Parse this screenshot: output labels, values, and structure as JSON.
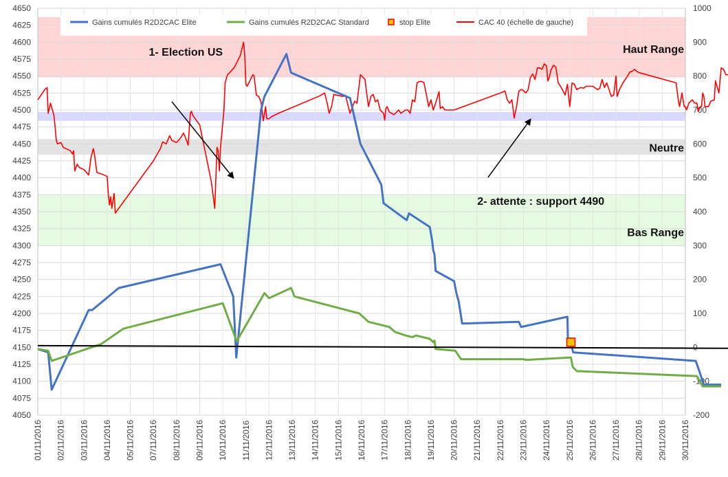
{
  "chart_data": {
    "type": "line",
    "title": "",
    "y_left": {
      "min": 4050,
      "max": 4650,
      "step": 25
    },
    "y_right": {
      "min": -200,
      "max": 1000,
      "step": 100
    },
    "x_labels": [
      "01/11/2016",
      "02/11/2016",
      "03/11/2016",
      "04/11/2016",
      "05/11/2016",
      "07/11/2016",
      "08/11/2016",
      "09/11/2016",
      "10/11/2016",
      "11/11/2016",
      "12/11/2016",
      "13/11/2016",
      "14/11/2016",
      "15/11/2016",
      "16/11/2016",
      "17/11/2016",
      "18/11/2016",
      "19/11/2016",
      "20/11/2016",
      "21/11/2016",
      "22/11/2016",
      "23/11/2016",
      "24/11/2016",
      "25/11/2016",
      "26/11/2016",
      "27/11/2016",
      "28/11/2016",
      "29/11/2016",
      "30/11/2016"
    ],
    "grid": true,
    "legend_position": "top",
    "legend": [
      {
        "label": "Gains cumulés R2D2CAC Elite",
        "color": "#4472C4",
        "kind": "line"
      },
      {
        "label": "Gains cumulés R2D2CAC Standard",
        "color": "#70AD47",
        "kind": "line"
      },
      {
        "label": "stop Elite",
        "color": "#FFC000",
        "border": "#FF0000",
        "kind": "marker"
      },
      {
        "label": "CAC 40 (échelle de gauche)",
        "color": "#FF0000",
        "kind": "line"
      }
    ],
    "bands": [
      {
        "label": "Haut Range",
        "y_from": 4548,
        "y_to": 4637,
        "color": "#FFD5D5"
      },
      {
        "label": "",
        "y_from": 4484,
        "y_to": 4497,
        "color": "#D9D9FF"
      },
      {
        "label": "Neutre",
        "y_from": 4434,
        "y_to": 4457,
        "color": "#E3E3E3"
      },
      {
        "label": "Bas Range",
        "y_from": 4299,
        "y_to": 4374,
        "color": "#E6FAE2"
      }
    ],
    "annotations": [
      {
        "text": "1- Election US",
        "x": 8.45,
        "y": 4400,
        "text_x": 4.8,
        "text_y": 4580
      },
      {
        "text": "2- attente : support 4490",
        "x": 21.3,
        "y": 4486,
        "text_x": 19.0,
        "text_y": 4360
      }
    ],
    "series": [
      {
        "name": "CAC 40 (échelle de gauche)",
        "axis": "left",
        "color": "#FF0000",
        "points": [
          [
            0,
            4515
          ],
          [
            0.3,
            4530
          ],
          [
            0.4,
            4533
          ],
          [
            0.45,
            4495
          ],
          [
            0.55,
            4510
          ],
          [
            0.7,
            4492
          ],
          [
            0.75,
            4475
          ],
          [
            0.8,
            4455
          ],
          [
            0.85,
            4450
          ],
          [
            1.0,
            4452
          ],
          [
            1.1,
            4445
          ],
          [
            1.4,
            4440
          ],
          [
            1.5,
            4435
          ],
          [
            1.55,
            4440
          ],
          [
            1.6,
            4410
          ],
          [
            1.7,
            4420
          ],
          [
            1.8,
            4415
          ],
          [
            2.0,
            4412
          ],
          [
            2.2,
            4404
          ],
          [
            2.3,
            4430
          ],
          [
            2.4,
            4443
          ],
          [
            2.45,
            4435
          ],
          [
            2.5,
            4422
          ],
          [
            2.55,
            4408
          ],
          [
            2.8,
            4405
          ],
          [
            3.0,
            4402
          ],
          [
            3.05,
            4375
          ],
          [
            3.1,
            4360
          ],
          [
            3.15,
            4372
          ],
          [
            3.2,
            4355
          ],
          [
            3.3,
            4377
          ],
          [
            3.35,
            4348
          ],
          [
            5.0,
            4425
          ],
          [
            5.3,
            4443
          ],
          [
            5.4,
            4453
          ],
          [
            5.55,
            4450
          ],
          [
            5.7,
            4462
          ],
          [
            5.8,
            4455
          ],
          [
            6.0,
            4452
          ],
          [
            6.2,
            4460
          ],
          [
            6.3,
            4466
          ],
          [
            6.4,
            4458
          ],
          [
            6.5,
            4448
          ],
          [
            6.6,
            4496
          ],
          [
            6.65,
            4498
          ],
          [
            6.7,
            4492
          ],
          [
            7.0,
            4478
          ],
          [
            7.5,
            4395
          ],
          [
            7.65,
            4355
          ],
          [
            7.75,
            4445
          ],
          [
            7.8,
            4440
          ],
          [
            7.85,
            4410
          ],
          [
            7.9,
            4445
          ],
          [
            8.05,
            4500
          ],
          [
            8.1,
            4540
          ],
          [
            8.2,
            4552
          ],
          [
            8.3,
            4555
          ],
          [
            8.5,
            4563
          ],
          [
            8.75,
            4580
          ],
          [
            8.9,
            4600
          ],
          [
            8.95,
            4580
          ],
          [
            9.0,
            4537
          ],
          [
            9.05,
            4535
          ],
          [
            9.3,
            4552
          ],
          [
            9.35,
            4550
          ],
          [
            9.45,
            4522
          ],
          [
            9.55,
            4520
          ],
          [
            9.65,
            4512
          ],
          [
            9.75,
            4484
          ],
          [
            9.85,
            4505
          ],
          [
            9.9,
            4487
          ],
          [
            10.0,
            4487
          ],
          [
            10.1,
            4490
          ],
          [
            10.4,
            4495
          ],
          [
            12.0,
            4518
          ],
          [
            12.2,
            4521
          ],
          [
            12.4,
            4525
          ],
          [
            12.5,
            4512
          ],
          [
            12.6,
            4495
          ],
          [
            12.7,
            4505
          ],
          [
            12.8,
            4523
          ],
          [
            12.9,
            4522
          ],
          [
            13.2,
            4520
          ],
          [
            13.3,
            4522
          ],
          [
            13.5,
            4495
          ],
          [
            13.7,
            4513
          ],
          [
            13.8,
            4510
          ],
          [
            13.95,
            4552
          ],
          [
            14.15,
            4545
          ],
          [
            14.2,
            4530
          ],
          [
            14.3,
            4505
          ],
          [
            14.4,
            4520
          ],
          [
            14.5,
            4523
          ],
          [
            14.6,
            4512
          ],
          [
            14.7,
            4515
          ],
          [
            14.8,
            4500
          ],
          [
            14.95,
            4495
          ],
          [
            15.0,
            4485
          ],
          [
            15.05,
            4502
          ],
          [
            15.1,
            4505
          ],
          [
            15.2,
            4497
          ],
          [
            15.4,
            4493
          ],
          [
            15.6,
            4500
          ],
          [
            15.7,
            4495
          ],
          [
            15.9,
            4500
          ],
          [
            16.0,
            4500
          ],
          [
            16.1,
            4495
          ],
          [
            16.2,
            4515
          ],
          [
            16.3,
            4512
          ],
          [
            16.4,
            4540
          ],
          [
            16.5,
            4542
          ],
          [
            16.6,
            4542
          ],
          [
            16.7,
            4540
          ],
          [
            16.9,
            4505
          ],
          [
            17.0,
            4515
          ],
          [
            17.1,
            4500
          ],
          [
            17.2,
            4510
          ],
          [
            17.35,
            4527
          ],
          [
            17.4,
            4502
          ],
          [
            17.5,
            4505
          ],
          [
            17.6,
            4500
          ],
          [
            18.0,
            4500
          ],
          [
            20.0,
            4525
          ],
          [
            20.2,
            4528
          ],
          [
            20.3,
            4515
          ],
          [
            20.4,
            4510
          ],
          [
            20.5,
            4515
          ],
          [
            20.6,
            4488
          ],
          [
            20.7,
            4505
          ],
          [
            20.8,
            4528
          ],
          [
            20.9,
            4530
          ],
          [
            20.95,
            4530
          ],
          [
            21.1,
            4525
          ],
          [
            21.2,
            4530
          ],
          [
            21.3,
            4548
          ],
          [
            21.4,
            4553
          ],
          [
            21.5,
            4545
          ],
          [
            21.6,
            4562
          ],
          [
            21.7,
            4562
          ],
          [
            21.8,
            4560
          ],
          [
            21.9,
            4568
          ],
          [
            22.0,
            4565
          ],
          [
            22.05,
            4543
          ],
          [
            22.1,
            4546
          ],
          [
            22.2,
            4560
          ],
          [
            22.3,
            4566
          ],
          [
            22.4,
            4563
          ],
          [
            22.5,
            4540
          ],
          [
            22.6,
            4535
          ],
          [
            22.65,
            4532
          ],
          [
            22.8,
            4522
          ],
          [
            22.9,
            4538
          ],
          [
            23.0,
            4505
          ],
          [
            23.1,
            4540
          ],
          [
            23.2,
            4538
          ],
          [
            23.3,
            4530
          ],
          [
            23.4,
            4532
          ],
          [
            23.5,
            4533
          ],
          [
            23.6,
            4532
          ],
          [
            23.7,
            4535
          ],
          [
            24.0,
            4535
          ],
          [
            24.2,
            4530
          ],
          [
            24.3,
            4532
          ],
          [
            24.4,
            4545
          ],
          [
            24.5,
            4533
          ],
          [
            24.6,
            4540
          ],
          [
            24.7,
            4530
          ],
          [
            24.8,
            4520
          ],
          [
            24.9,
            4522
          ],
          [
            25.0,
            4550
          ],
          [
            25.05,
            4520
          ],
          [
            25.15,
            4530
          ],
          [
            25.3,
            4540
          ],
          [
            25.5,
            4550
          ],
          [
            25.6,
            4556
          ],
          [
            25.7,
            4557
          ],
          [
            25.8,
            4560
          ],
          [
            25.9,
            4557
          ],
          [
            26.0,
            4555
          ],
          [
            27.6,
            4540
          ],
          [
            27.7,
            4513
          ],
          [
            27.75,
            4505
          ],
          [
            27.85,
            4525
          ],
          [
            27.95,
            4505
          ],
          [
            28.0,
            4505
          ],
          [
            28.05,
            4500
          ],
          [
            28.15,
            4510
          ],
          [
            28.2,
            4512
          ],
          [
            28.3,
            4515
          ],
          [
            28.4,
            4510
          ],
          [
            28.5,
            4510
          ],
          [
            28.55,
            4498
          ],
          [
            28.65,
            4505
          ],
          [
            28.7,
            4505
          ],
          [
            28.75,
            4525
          ],
          [
            28.8,
            4520
          ],
          [
            28.85,
            4505
          ],
          [
            28.95,
            4505
          ],
          [
            29.0,
            4505
          ],
          [
            29.1,
            4513
          ],
          [
            29.25,
            4515
          ],
          [
            29.3,
            4543
          ],
          [
            29.45,
            4525
          ],
          [
            29.55,
            4562
          ],
          [
            29.65,
            4560
          ],
          [
            29.75,
            4552
          ],
          [
            29.85,
            4552
          ],
          [
            30.0,
            4550
          ]
        ]
      },
      {
        "name": "Gains cumulés R2D2CAC Elite",
        "axis": "right",
        "color": "#4472C4",
        "points": [
          [
            0,
            -5
          ],
          [
            0.45,
            -15
          ],
          [
            0.6,
            -125
          ],
          [
            2.2,
            110
          ],
          [
            2.35,
            110
          ],
          [
            3.5,
            175
          ],
          [
            7.9,
            245
          ],
          [
            8.45,
            150
          ],
          [
            8.58,
            -30
          ],
          [
            9.65,
            700
          ],
          [
            9.8,
            740
          ],
          [
            10.75,
            865
          ],
          [
            10.95,
            810
          ],
          [
            13.5,
            735
          ],
          [
            13.95,
            600
          ],
          [
            14.85,
            480
          ],
          [
            14.95,
            425
          ],
          [
            15.95,
            375
          ],
          [
            16.05,
            395
          ],
          [
            16.95,
            355
          ],
          [
            17.05,
            315
          ],
          [
            17.1,
            285
          ],
          [
            17.15,
            275
          ],
          [
            17.2,
            225
          ],
          [
            18.0,
            195
          ],
          [
            18.1,
            160
          ],
          [
            18.2,
            135
          ],
          [
            18.35,
            70
          ],
          [
            20.8,
            75
          ],
          [
            20.9,
            60
          ],
          [
            22.9,
            90
          ],
          [
            22.92,
            25
          ],
          [
            23.05,
            10
          ],
          [
            23.15,
            -15
          ],
          [
            28.45,
            -40
          ],
          [
            28.55,
            -60
          ],
          [
            28.8,
            -110
          ],
          [
            29.55,
            -110
          ]
        ]
      },
      {
        "name": "Gains cumulés R2D2CAC Standard",
        "axis": "right",
        "color": "#70AD47",
        "points": [
          [
            0,
            -5
          ],
          [
            0.45,
            -10
          ],
          [
            0.6,
            -40
          ],
          [
            2.75,
            10
          ],
          [
            3.7,
            55
          ],
          [
            8.0,
            130
          ],
          [
            8.6,
            18
          ],
          [
            9.8,
            160
          ],
          [
            10.0,
            145
          ],
          [
            10.95,
            175
          ],
          [
            11.1,
            150
          ],
          [
            13.9,
            100
          ],
          [
            14.3,
            75
          ],
          [
            15.2,
            60
          ],
          [
            15.45,
            45
          ],
          [
            15.9,
            35
          ],
          [
            16.2,
            30
          ],
          [
            16.35,
            35
          ],
          [
            16.95,
            25
          ],
          [
            17.1,
            15
          ],
          [
            17.15,
            20
          ],
          [
            17.2,
            -5
          ],
          [
            18.05,
            -10
          ],
          [
            18.15,
            -20
          ],
          [
            18.3,
            -35
          ],
          [
            21.0,
            -35
          ],
          [
            21.1,
            -37
          ],
          [
            23.05,
            -30
          ],
          [
            23.13,
            -58
          ],
          [
            23.3,
            -70
          ],
          [
            28.5,
            -85
          ],
          [
            28.75,
            -115
          ],
          [
            29.55,
            -115
          ]
        ]
      },
      {
        "name": "",
        "axis": "right",
        "color": "#000000",
        "points": [
          [
            0,
            5
          ],
          [
            30,
            -3
          ]
        ]
      },
      {
        "name": "stop Elite",
        "axis": "right",
        "kind": "marker",
        "color": "#FFC000",
        "border": "#FF0000",
        "points": [
          [
            23.05,
            15
          ]
        ]
      }
    ]
  }
}
